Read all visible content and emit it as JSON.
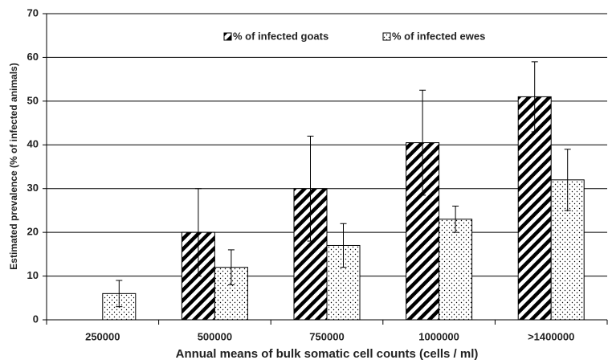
{
  "chart_data": {
    "type": "bar",
    "x_label": "Annual means of bulk somatic cell counts (cells / ml)",
    "y_label": "Estimated prevalence (% of infected animals)",
    "categories": [
      "250000",
      "500000",
      "750000",
      "1000000",
      ">1400000"
    ],
    "series": [
      {
        "name": "% of infected goats",
        "color": "#000000",
        "pattern": "stripes",
        "values": [
          null,
          20,
          30,
          40.5,
          51
        ],
        "errors": [
          null,
          10,
          12,
          12,
          8
        ]
      },
      {
        "name": "% of infected ewes",
        "color": "#000000",
        "pattern": "dots",
        "values": [
          6,
          12,
          17,
          23,
          32
        ],
        "errors": [
          3,
          4,
          5,
          3,
          7
        ]
      }
    ],
    "ylim": [
      0,
      70
    ],
    "yticks": [
      0,
      10,
      20,
      30,
      40,
      50,
      60,
      70
    ],
    "grid": true,
    "legend": "upper center"
  }
}
